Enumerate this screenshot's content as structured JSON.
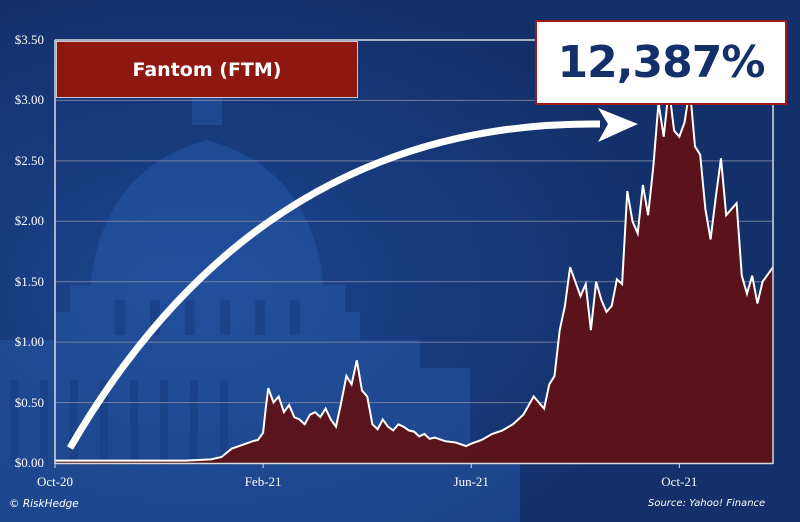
{
  "colors": {
    "background": "#13306a",
    "capitol_tint": "#2756a6",
    "area_fill": "#5e1216",
    "line": "#ffffff",
    "title_box_bg": "#8e1710",
    "pct_box_border": "#9b1c17",
    "pct_text": "#13306a",
    "gridline": "#8a8fa6"
  },
  "title_box": {
    "label": "Fantom (FTM)"
  },
  "highlight": {
    "label": "12,387%"
  },
  "footer": {
    "credit": "© RiskHedge",
    "source": "Source: Yahoo! Finance"
  },
  "chart_data": {
    "type": "area",
    "title": "Fantom (FTM)",
    "annotation": "12,387%",
    "xlabel": "",
    "ylabel": "",
    "ylim": [
      0,
      3.5
    ],
    "yticks": [
      0,
      0.5,
      1.0,
      1.5,
      2.0,
      2.5,
      3.0,
      3.5
    ],
    "ytick_labels": [
      "$0.00",
      "$0.50",
      "$1.00",
      "$1.50",
      "$2.00",
      "$2.50",
      "$3.00",
      "$3.50"
    ],
    "xtick_labels": [
      "Oct-20",
      "Feb-21",
      "Jun-21",
      "Oct-21"
    ],
    "xtick_positions": [
      0,
      4,
      8,
      12
    ],
    "x_unit": "months since Oct-2020",
    "grid": true,
    "legend": "none",
    "series": [
      {
        "name": "FTM price (USD)",
        "x": [
          0,
          0.5,
          1,
          1.5,
          2,
          2.5,
          3,
          3.2,
          3.4,
          3.6,
          3.8,
          3.9,
          4.0,
          4.05,
          4.1,
          4.2,
          4.3,
          4.4,
          4.5,
          4.6,
          4.7,
          4.8,
          4.9,
          5.0,
          5.1,
          5.2,
          5.3,
          5.4,
          5.5,
          5.6,
          5.7,
          5.8,
          5.9,
          6.0,
          6.1,
          6.2,
          6.3,
          6.4,
          6.5,
          6.6,
          6.7,
          6.8,
          6.9,
          7.0,
          7.1,
          7.2,
          7.3,
          7.5,
          7.7,
          7.9,
          8.0,
          8.2,
          8.4,
          8.6,
          8.8,
          9.0,
          9.2,
          9.4,
          9.5,
          9.6,
          9.7,
          9.8,
          9.9,
          10.0,
          10.1,
          10.2,
          10.3,
          10.4,
          10.5,
          10.6,
          10.7,
          10.8,
          10.9,
          11.0,
          11.1,
          11.2,
          11.3,
          11.4,
          11.5,
          11.6,
          11.7,
          11.8,
          11.9,
          12.0,
          12.1,
          12.2,
          12.3,
          12.4,
          12.5,
          12.6,
          12.7,
          12.8,
          12.9,
          13.0,
          13.1,
          13.2,
          13.3,
          13.4,
          13.5,
          13.6,
          13.8
        ],
        "values": [
          0.02,
          0.02,
          0.02,
          0.02,
          0.02,
          0.02,
          0.03,
          0.05,
          0.12,
          0.15,
          0.18,
          0.19,
          0.25,
          0.45,
          0.62,
          0.5,
          0.55,
          0.42,
          0.48,
          0.38,
          0.36,
          0.32,
          0.4,
          0.42,
          0.38,
          0.45,
          0.36,
          0.3,
          0.5,
          0.72,
          0.65,
          0.85,
          0.6,
          0.55,
          0.32,
          0.28,
          0.36,
          0.3,
          0.27,
          0.32,
          0.3,
          0.27,
          0.26,
          0.22,
          0.24,
          0.2,
          0.21,
          0.18,
          0.17,
          0.14,
          0.16,
          0.19,
          0.24,
          0.27,
          0.32,
          0.4,
          0.55,
          0.45,
          0.65,
          0.72,
          1.1,
          1.3,
          1.62,
          1.5,
          1.38,
          1.48,
          1.1,
          1.5,
          1.35,
          1.25,
          1.3,
          1.52,
          1.48,
          2.25,
          2.0,
          1.9,
          2.3,
          2.05,
          2.45,
          2.98,
          2.7,
          3.1,
          2.75,
          2.7,
          2.82,
          3.1,
          2.62,
          2.55,
          2.1,
          1.85,
          2.2,
          2.52,
          2.05,
          2.1,
          2.15,
          1.55,
          1.4,
          1.55,
          1.32,
          1.5,
          1.62
        ]
      }
    ],
    "overlay_arrow": {
      "from": [
        0.15,
        0.1
      ],
      "to": [
        11.0,
        2.9
      ],
      "style": "curved white arrow"
    }
  }
}
